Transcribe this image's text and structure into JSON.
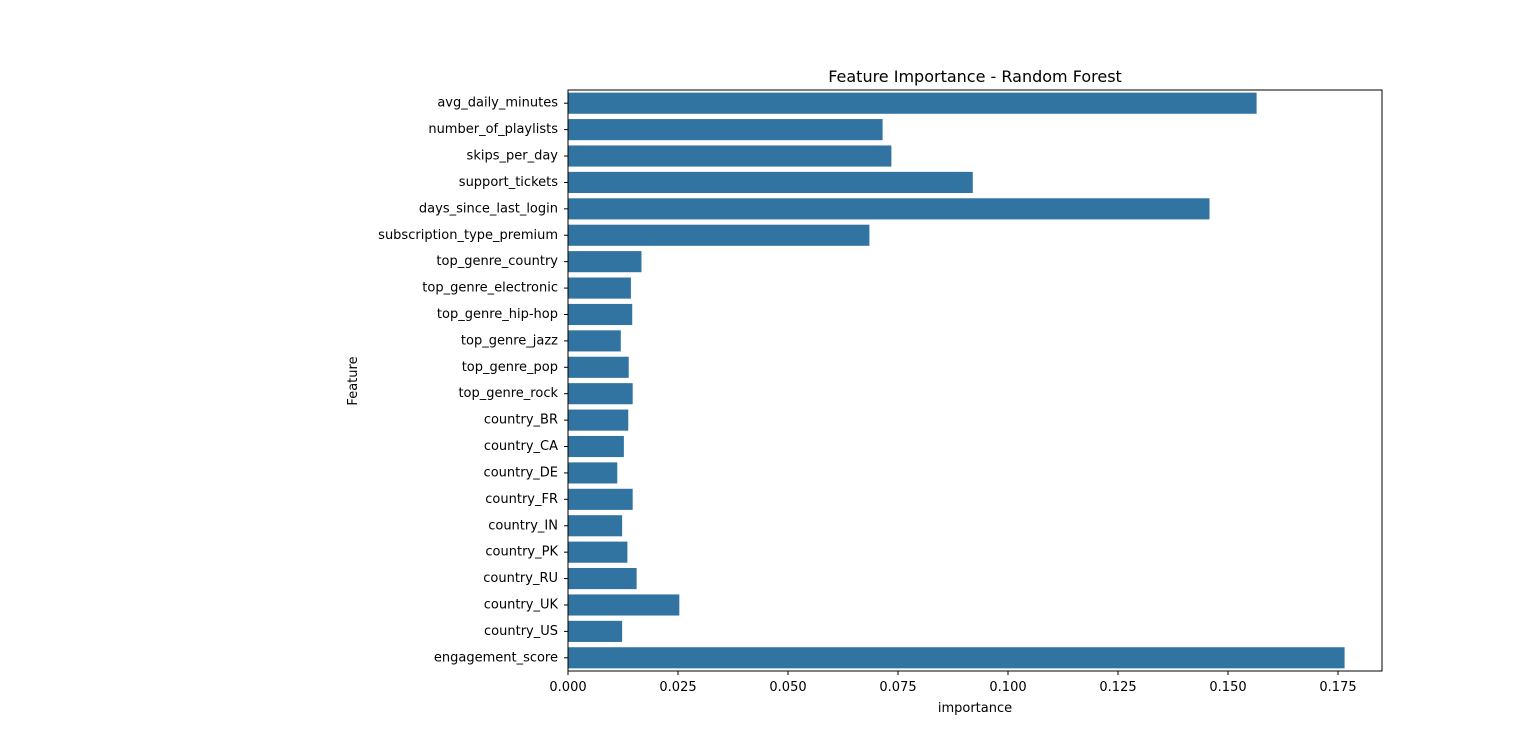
{
  "chart_data": {
    "type": "bar",
    "orientation": "horizontal",
    "title": "Feature Importance - Random Forest",
    "xlabel": "importance",
    "ylabel": "Feature",
    "xlim": [
      0,
      0.185
    ],
    "xticks": [
      0.0,
      0.025,
      0.05,
      0.075,
      0.1,
      0.125,
      0.15,
      0.175
    ],
    "xtick_labels": [
      "0.000",
      "0.025",
      "0.050",
      "0.075",
      "0.100",
      "0.125",
      "0.150",
      "0.175"
    ],
    "grid": false,
    "bar_color": "#3274a1",
    "categories": [
      "avg_daily_minutes",
      "number_of_playlists",
      "skips_per_day",
      "support_tickets",
      "days_since_last_login",
      "subscription_type_premium",
      "top_genre_country",
      "top_genre_electronic",
      "top_genre_hip-hop",
      "top_genre_jazz",
      "top_genre_pop",
      "top_genre_rock",
      "country_BR",
      "country_CA",
      "country_DE",
      "country_FR",
      "country_IN",
      "country_PK",
      "country_RU",
      "country_UK",
      "country_US",
      "engagement_score"
    ],
    "values": [
      0.1565,
      0.0715,
      0.0735,
      0.092,
      0.1458,
      0.0685,
      0.0167,
      0.0143,
      0.0146,
      0.012,
      0.0138,
      0.0147,
      0.0137,
      0.0127,
      0.0112,
      0.0147,
      0.0123,
      0.0135,
      0.0156,
      0.0253,
      0.0123,
      0.1765
    ]
  }
}
